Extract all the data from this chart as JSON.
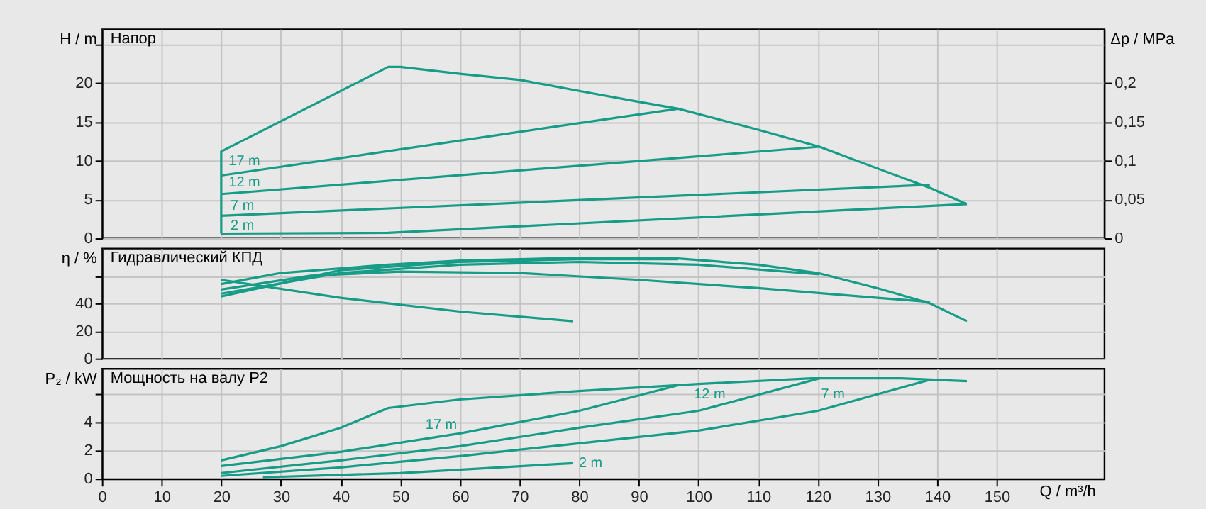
{
  "chart_data": [
    {
      "type": "line",
      "title": "Напор",
      "ylabel": "H / m",
      "y2label": "Δp / MPa",
      "xlim": [
        0,
        168
      ],
      "xticks": [
        0,
        10,
        20,
        30,
        40,
        50,
        60,
        70,
        80,
        90,
        100,
        110,
        120,
        130,
        140,
        150
      ],
      "ylim": [
        0,
        27
      ],
      "yticks": [
        0,
        5,
        10,
        15,
        20,
        {
          "value": 25,
          "label": null
        }
      ],
      "y2lim": [
        0,
        0.27
      ],
      "y2ticks": [
        {
          "value": 0,
          "label": "0"
        },
        {
          "value": 0.05,
          "label": "0,05"
        },
        {
          "value": 0.1,
          "label": "0,1"
        },
        {
          "value": 0.15,
          "label": "0,15"
        },
        {
          "value": 0.2,
          "label": "0,2"
        }
      ],
      "grid": true,
      "tick_labels": "y",
      "series": [
        {
          "color": "#179c87",
          "x": [
            20,
            20,
            48,
            50,
            60,
            70.2,
            80,
            90,
            96.6,
            110,
            120.3,
            130,
            138.8,
            145
          ],
          "values": [
            0.6,
            11.2,
            22.1,
            22.1,
            21.2,
            20.4,
            19.0,
            17.6,
            16.7,
            14.0,
            11.8,
            9.0,
            6.5,
            4.4
          ]
        },
        {
          "color": "#179c87",
          "x": [
            20,
            96.6
          ],
          "values": [
            8.1,
            16.7
          ]
        },
        {
          "color": "#179c87",
          "x": [
            20,
            120.3
          ],
          "values": [
            5.7,
            11.8
          ]
        },
        {
          "color": "#179c87",
          "x": [
            20,
            138.8
          ],
          "values": [
            2.9,
            6.9
          ]
        },
        {
          "color": "#179c87",
          "x": [
            20,
            48,
            145
          ],
          "values": [
            0.6,
            0.7,
            4.4
          ]
        }
      ],
      "annotations": [
        {
          "text": "17 m",
          "x": 27,
          "y": 8.9
        },
        {
          "text": "12 m",
          "x": 27,
          "y": 6.1
        },
        {
          "text": "7 m",
          "x": 26,
          "y": 3.1
        },
        {
          "text": "2 m",
          "x": 26,
          "y": 0.6
        }
      ]
    },
    {
      "type": "line",
      "title": "Гидравлический КПД",
      "ylabel": "η / %",
      "xlim": [
        0,
        168
      ],
      "xticks": [
        0,
        10,
        20,
        30,
        40,
        50,
        60,
        70,
        80,
        90,
        100,
        110,
        120,
        130,
        140,
        150
      ],
      "ylim": [
        0,
        80
      ],
      "yticks": [
        0,
        20,
        40,
        {
          "value": 60,
          "label": null
        }
      ],
      "grid": true,
      "tick_labels": "y",
      "series": [
        {
          "color": "#179c87",
          "x": [
            20,
            30,
            48,
            60,
            80,
            95,
            110,
            120,
            130,
            138.8,
            145
          ],
          "values": [
            54,
            62,
            68,
            71,
            73,
            73,
            68,
            62,
            51,
            40,
            27
          ]
        },
        {
          "color": "#179c87",
          "x": [
            20,
            40,
            60,
            80,
            96.6
          ],
          "values": [
            45,
            64,
            70,
            72,
            72
          ]
        },
        {
          "color": "#179c87",
          "x": [
            20,
            40,
            60,
            80,
            100,
            120.3
          ],
          "values": [
            47,
            62,
            68,
            70,
            68,
            61
          ]
        },
        {
          "color": "#179c87",
          "x": [
            20,
            35,
            50,
            70,
            90,
            110,
            130,
            138.8
          ],
          "values": [
            50,
            60,
            63,
            62,
            57,
            51,
            44,
            41
          ]
        },
        {
          "color": "#179c87",
          "x": [
            20,
            40,
            60,
            79
          ],
          "values": [
            57,
            44,
            34,
            27
          ]
        }
      ]
    },
    {
      "type": "line",
      "title": "Мощность на валу P2",
      "ylabel": "P₂ / kW",
      "xlabel": "Q / m³/h",
      "xlim": [
        0,
        168
      ],
      "xticks": [
        0,
        10,
        20,
        30,
        40,
        50,
        60,
        70,
        80,
        90,
        100,
        110,
        120,
        130,
        140,
        150
      ],
      "ylim": [
        0,
        7.8
      ],
      "yticks": [
        0,
        2,
        4,
        {
          "value": 6,
          "label": null
        }
      ],
      "grid": true,
      "series": [
        {
          "color": "#179c87",
          "x": [
            20,
            30,
            40,
            48,
            60,
            80,
            100,
            119,
            134,
            145
          ],
          "values": [
            1.3,
            2.3,
            3.6,
            5.0,
            5.6,
            6.2,
            6.7,
            7.1,
            7.1,
            6.9
          ]
        },
        {
          "color": "#179c87",
          "x": [
            20,
            40,
            60,
            80,
            96.6
          ],
          "values": [
            0.9,
            1.9,
            3.2,
            4.8,
            6.6
          ]
        },
        {
          "color": "#179c87",
          "x": [
            20,
            40,
            60,
            80,
            100,
            120.3
          ],
          "values": [
            0.4,
            1.3,
            2.3,
            3.6,
            4.8,
            7.1
          ]
        },
        {
          "color": "#179c87",
          "x": [
            20,
            40,
            60,
            80,
            100,
            120,
            138.8
          ],
          "values": [
            0.2,
            0.8,
            1.6,
            2.5,
            3.4,
            4.8,
            7.0
          ]
        },
        {
          "color": "#179c87",
          "x": [
            27,
            50,
            79
          ],
          "values": [
            0.1,
            0.4,
            1.1
          ]
        }
      ],
      "annotations": [
        {
          "text": "17 m",
          "x": 60,
          "y": 3.2
        },
        {
          "text": "12 m",
          "x": 105,
          "y": 5.4
        },
        {
          "text": "7 m",
          "x": 125,
          "y": 5.4
        },
        {
          "text": "2 m",
          "x": 79,
          "y": 1.1
        }
      ]
    }
  ]
}
